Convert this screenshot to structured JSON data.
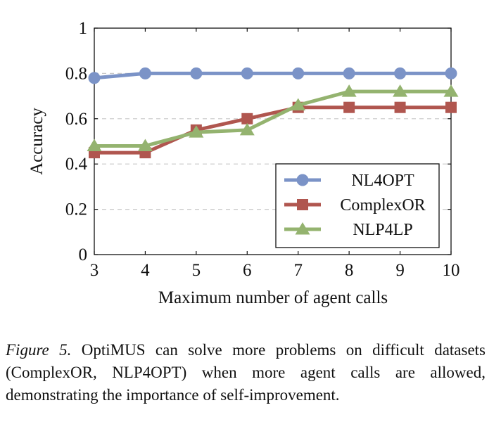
{
  "chart_data": {
    "type": "line",
    "xlabel": "Maximum number of agent calls",
    "ylabel": "Accuracy",
    "x": [
      3,
      4,
      5,
      6,
      7,
      8,
      9,
      10
    ],
    "xlim": [
      3,
      10
    ],
    "ylim": [
      0,
      1
    ],
    "yticks": [
      0,
      0.2,
      0.4,
      0.6,
      0.8,
      1
    ],
    "ytick_labels": [
      "0",
      "0.2",
      "0.4",
      "0.6",
      "0.8",
      "1"
    ],
    "xtick_labels": [
      "3",
      "4",
      "5",
      "6",
      "7",
      "8",
      "9",
      "10"
    ],
    "grid": "horizontal dashed",
    "legend_position": "bottom-right",
    "series": [
      {
        "name": "NL4OPT",
        "marker": "circle",
        "color": "#7b93c7",
        "values": [
          0.78,
          0.8,
          0.8,
          0.8,
          0.8,
          0.8,
          0.8,
          0.8
        ]
      },
      {
        "name": "ComplexOR",
        "marker": "square",
        "color": "#b0564f",
        "values": [
          0.45,
          0.45,
          0.55,
          0.6,
          0.65,
          0.65,
          0.65,
          0.65
        ]
      },
      {
        "name": "NLP4LP",
        "marker": "triangle",
        "color": "#94b36f",
        "values": [
          0.48,
          0.48,
          0.54,
          0.55,
          0.66,
          0.72,
          0.72,
          0.72
        ]
      }
    ]
  },
  "caption": {
    "lead": "Figure 5.",
    "text": " OptiMUS can solve more problems on difficult datasets (ComplexOR, NLP4OPT) when more agent calls are allowed, demonstrating the importance of self-improvement."
  }
}
